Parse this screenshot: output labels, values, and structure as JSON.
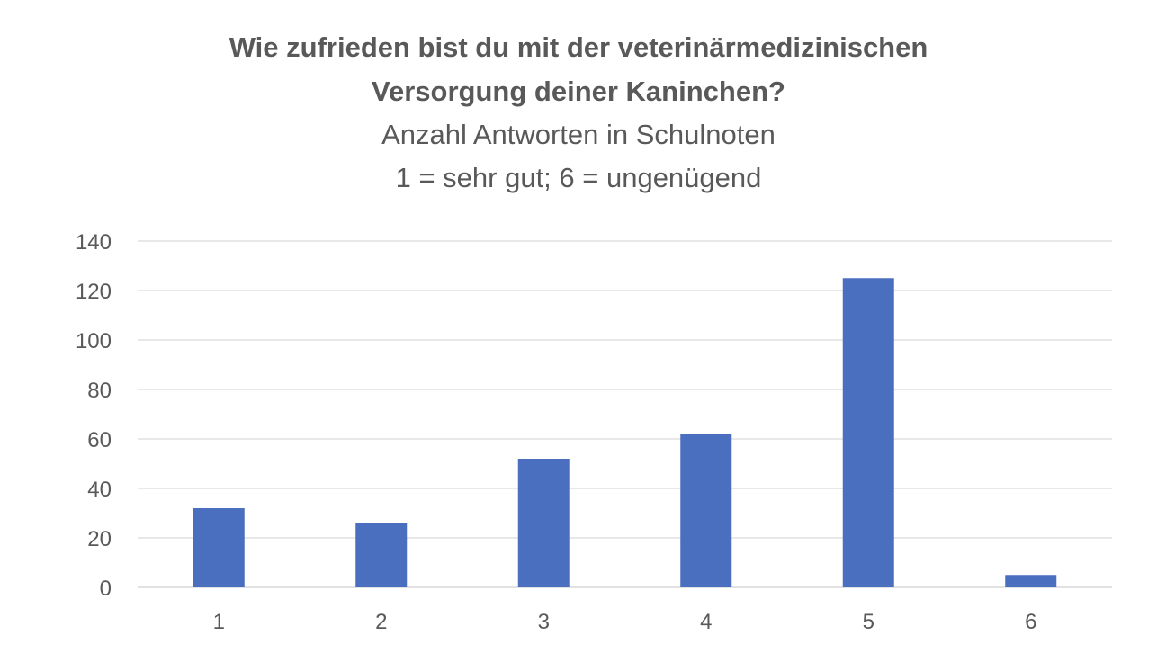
{
  "chart_data": {
    "type": "bar",
    "title": "Wie zufrieden bist du mit der veterinärmedizinischen Versorgung deiner Kaninchen?",
    "subtitle_lines": [
      "Anzahl Antworten in Schulnoten",
      "1 = sehr gut; 6 = ungenügend"
    ],
    "categories": [
      "1",
      "2",
      "3",
      "4",
      "5",
      "6"
    ],
    "values": [
      32,
      26,
      52,
      62,
      125,
      5
    ],
    "ylim": [
      0,
      140
    ],
    "yticks": [
      0,
      20,
      40,
      60,
      80,
      100,
      120,
      140
    ],
    "grid": true,
    "bar_color": "#4a6fbe",
    "grid_color": "#d9d9d9"
  }
}
